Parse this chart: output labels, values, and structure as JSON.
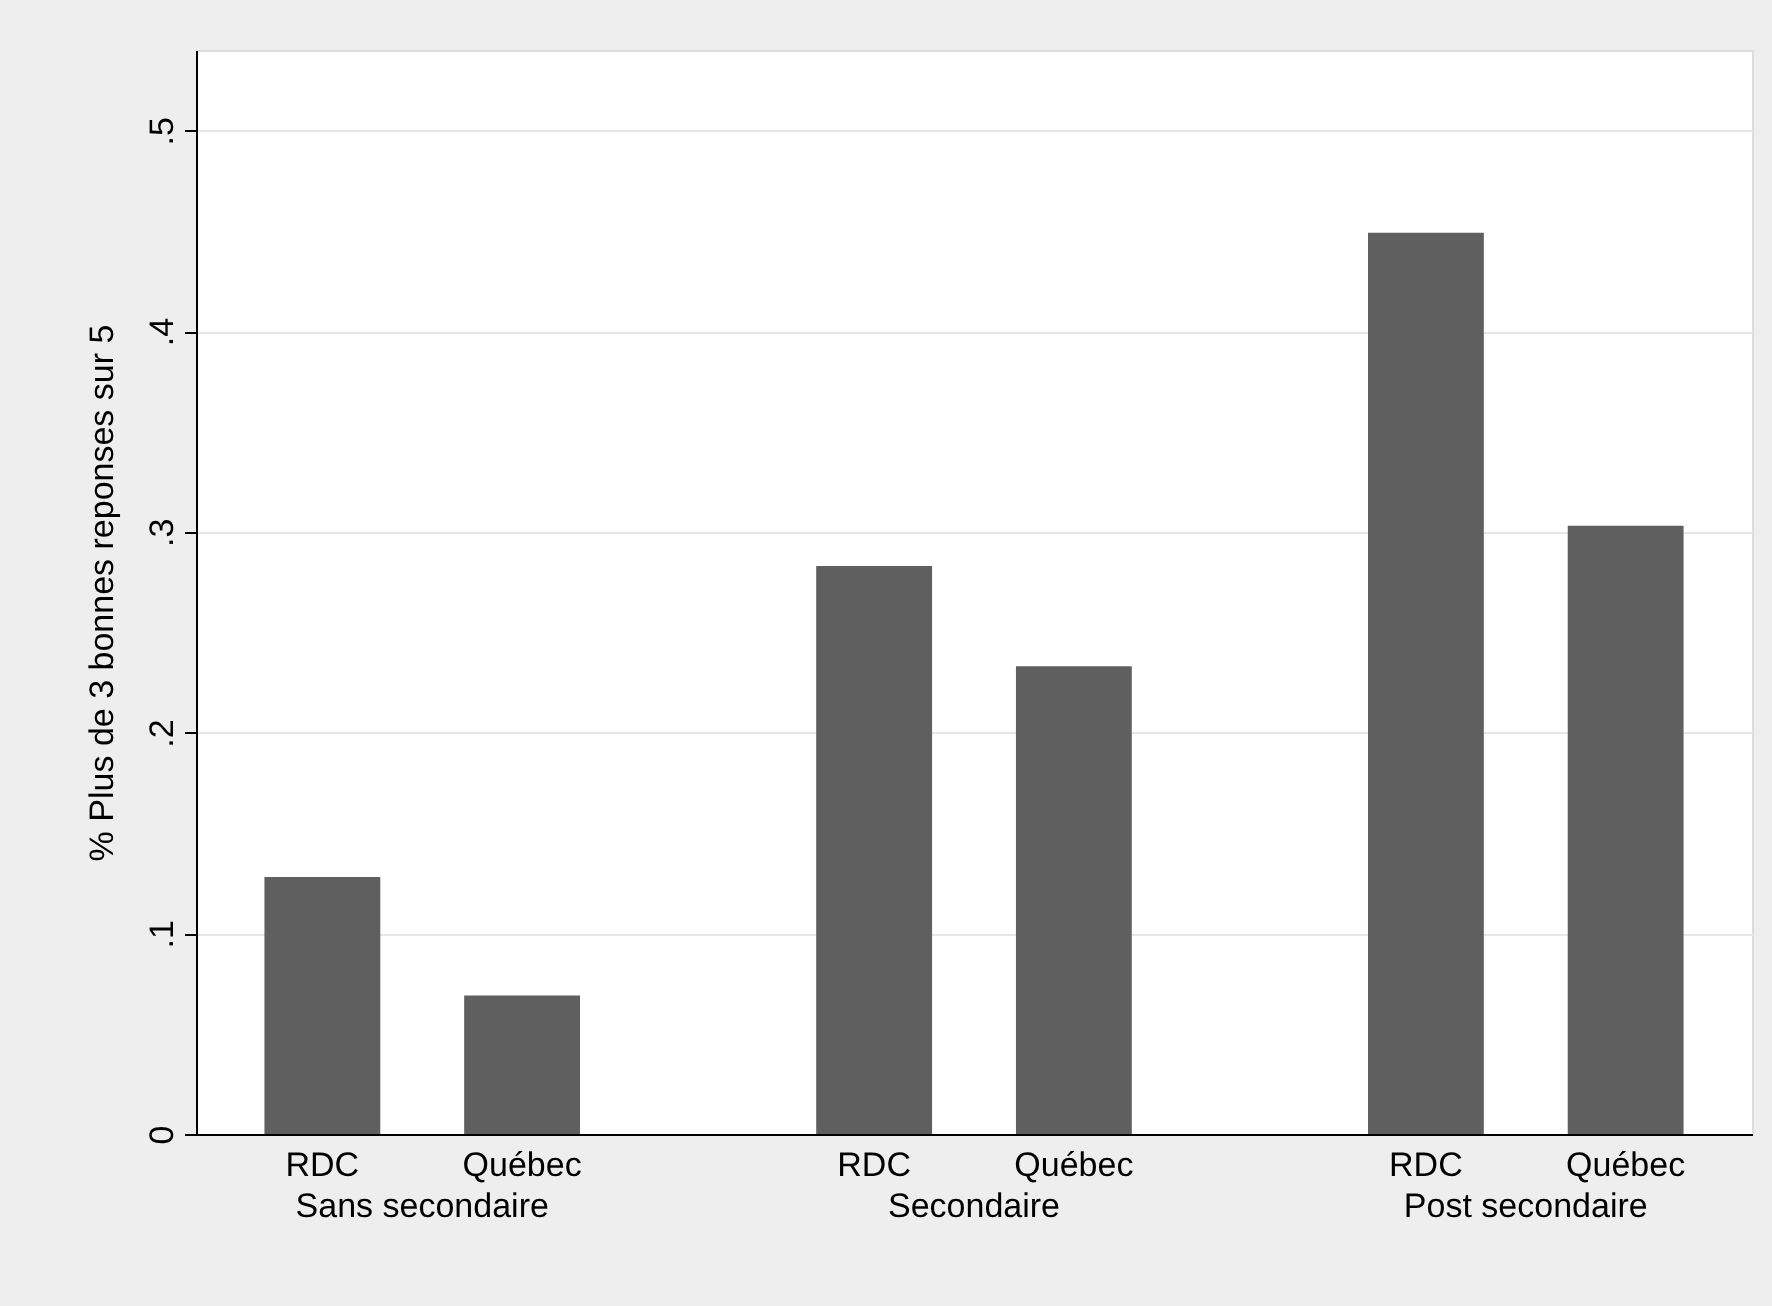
{
  "chart_data": {
    "type": "bar",
    "ylabel": "% Plus de 3 bonnes reponses sur 5",
    "categories": [
      "Sans secondaire",
      "Secondaire",
      "Post secondaire"
    ],
    "series": [
      {
        "name": "RDC",
        "color": "#5f5f5f",
        "values": [
          0.128,
          0.283,
          0.449
        ]
      },
      {
        "name": "Québec",
        "color": "#5f5f5f",
        "values": [
          0.069,
          0.233,
          0.303
        ]
      }
    ],
    "ylim": [
      0,
      0.54
    ],
    "yticks": [
      0,
      {
        "value": 0.1,
        "label": ".1"
      },
      {
        "value": 0.2,
        "label": ".2"
      },
      {
        "value": 0.3,
        "label": ".3"
      },
      {
        "value": 0.4,
        "label": ".4"
      },
      {
        "value": 0.5,
        "label": ".5"
      }
    ],
    "grid": "y"
  }
}
